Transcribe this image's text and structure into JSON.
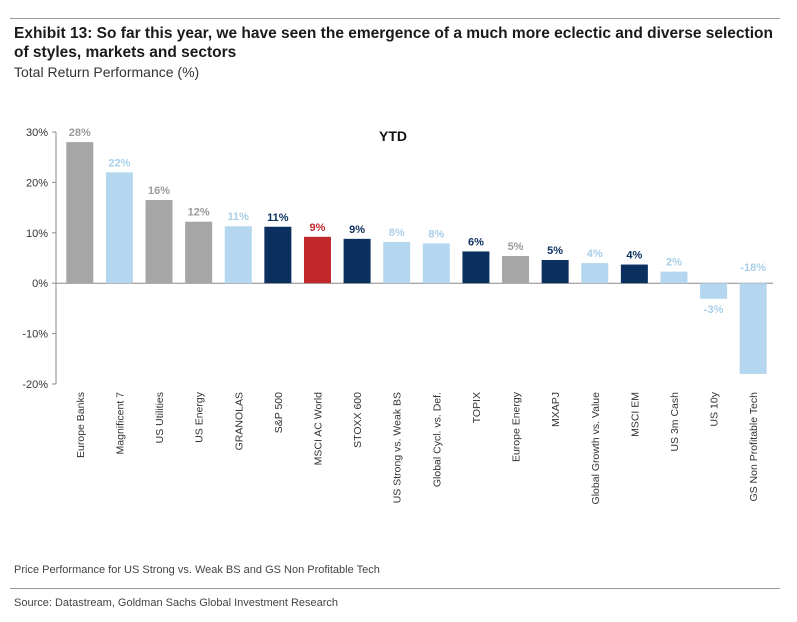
{
  "header": {
    "title": "Exhibit 13: So far this year, we have seen the emergence of a much more eclectic and diverse selection of styles, markets and sectors",
    "subtitle": "Total Return Performance (%)"
  },
  "footer": {
    "footnote": "Price Performance for US Strong vs. Weak BS and GS Non Profitable Tech",
    "source": "Source: Datastream, Goldman Sachs Global Investment Research"
  },
  "colors": {
    "grey": "#a6a6a6",
    "light_blue": "#b4d7ef",
    "navy": "#0b2f5e",
    "red": "#c0282c",
    "light_blue_label": "#a9cfe9",
    "grey_label": "#9a9a9a"
  },
  "chart_data": {
    "type": "bar",
    "title": "YTD",
    "ylim": [
      -20,
      30
    ],
    "yticks": [
      -20,
      -10,
      0,
      10,
      20,
      30
    ],
    "ytick_labels": [
      "-20%",
      "-10%",
      "0%",
      "10%",
      "20%",
      "30%"
    ],
    "categories": [
      "Europe Banks",
      "Magnificent 7",
      "US Utilities",
      "US Energy",
      "GRANOLAS",
      "S&P 500",
      "MSCI AC World",
      "STOXX 600",
      "US Strong vs. Weak BS",
      "Global Cycl. vs. Def.",
      "TOPIX",
      "Europe Energy",
      "MXAPJ",
      "Global Growth vs. Value",
      "MSCI EM",
      "US 3m Cash",
      "US 10y",
      "GS Non Profitable Tech"
    ],
    "values": [
      28,
      22,
      16.5,
      12.2,
      11.3,
      11.2,
      9.2,
      8.8,
      8.2,
      7.9,
      6.3,
      5.4,
      4.6,
      4.0,
      3.7,
      2.3,
      -3.1,
      -18
    ],
    "data_labels": [
      "28%",
      "22%",
      "16%",
      "12%",
      "11%",
      "11%",
      "9%",
      "9%",
      "8%",
      "8%",
      "6%",
      "5%",
      "5%",
      "4%",
      "4%",
      "2%",
      "-3%",
      "-18%"
    ],
    "bar_colors": [
      "grey",
      "light_blue",
      "grey",
      "grey",
      "light_blue",
      "navy",
      "red",
      "navy",
      "light_blue",
      "light_blue",
      "navy",
      "grey",
      "navy",
      "light_blue",
      "navy",
      "light_blue",
      "light_blue",
      "light_blue"
    ],
    "grid": false,
    "legend": "none"
  }
}
